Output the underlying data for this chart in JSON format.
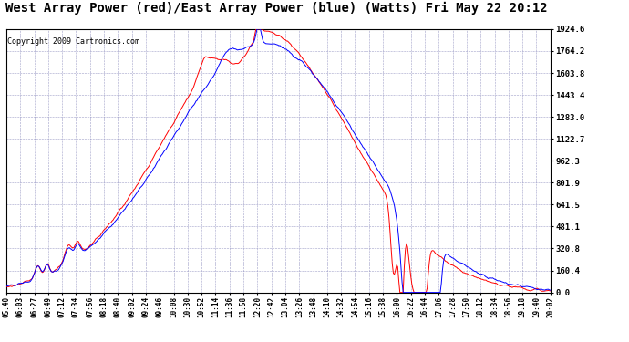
{
  "title": "West Array Power (red)/East Array Power (blue) (Watts) Fri May 22 20:12",
  "copyright": "Copyright 2009 Cartronics.com",
  "bg_color": "#FFFFFF",
  "plot_bg_color": "#FFFFFF",
  "grid_color": "#8888BB",
  "line_red": "#FF0000",
  "line_blue": "#0000FF",
  "yticks": [
    0.0,
    160.4,
    320.8,
    481.1,
    641.5,
    801.9,
    962.3,
    1122.7,
    1283.0,
    1443.4,
    1603.8,
    1764.2,
    1924.6
  ],
  "xtick_labels": [
    "05:40",
    "06:03",
    "06:27",
    "06:49",
    "07:12",
    "07:34",
    "07:56",
    "08:18",
    "08:40",
    "09:02",
    "09:24",
    "09:46",
    "10:08",
    "10:30",
    "10:52",
    "11:14",
    "11:36",
    "11:58",
    "12:20",
    "12:42",
    "13:04",
    "13:26",
    "13:48",
    "14:10",
    "14:32",
    "14:54",
    "15:16",
    "15:38",
    "16:00",
    "16:22",
    "16:44",
    "17:06",
    "17:28",
    "17:50",
    "18:12",
    "18:34",
    "18:56",
    "19:18",
    "19:40",
    "20:02"
  ],
  "title_fontsize": 10,
  "copyright_fontsize": 6,
  "ylim_max": 1924.6
}
